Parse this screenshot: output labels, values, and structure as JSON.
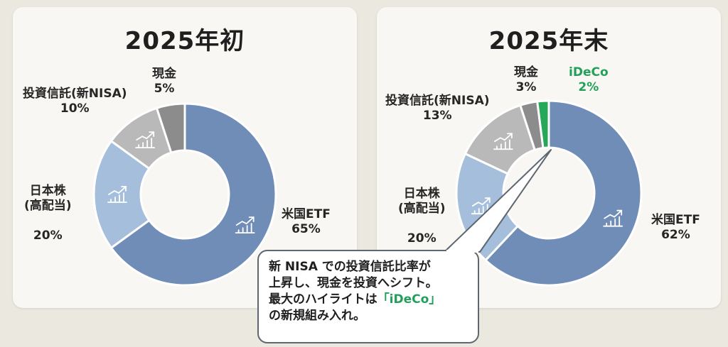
{
  "colors": {
    "us_etf": "#6f8db6",
    "jp_stock": "#a4bedb",
    "trust": "#b9b9b9",
    "cash": "#8c8c8c",
    "ideco": "#26a85a",
    "icon": "#ffffff"
  },
  "icons": {
    "slice_icon": "growth-chart-icon"
  },
  "chart_data": [
    {
      "type": "pie",
      "title": "2025年初",
      "slices": [
        {
          "label": "米国ETF",
          "value": 65,
          "pct_text": "65%",
          "color": "#6f8db6"
        },
        {
          "label": "日本株\n(高配当)",
          "value": 20,
          "pct_text": "20%",
          "color": "#a4bedb"
        },
        {
          "label": "投資信託(新NISA)",
          "value": 10,
          "pct_text": "10%",
          "color": "#b9b9b9"
        },
        {
          "label": "現金",
          "value": 5,
          "pct_text": "5%",
          "color": "#8c8c8c"
        }
      ]
    },
    {
      "type": "pie",
      "title": "2025年末",
      "slices": [
        {
          "label": "米国ETF",
          "value": 62,
          "pct_text": "62%",
          "color": "#6f8db6"
        },
        {
          "label": "日本株\n(高配当)",
          "value": 20,
          "pct_text": "20%",
          "color": "#a4bedb"
        },
        {
          "label": "投資信託(新NISA)",
          "value": 13,
          "pct_text": "13%",
          "color": "#b9b9b9"
        },
        {
          "label": "現金",
          "value": 3,
          "pct_text": "3%",
          "color": "#8c8c8c"
        },
        {
          "label": "iDeCo",
          "value": 2,
          "pct_text": "2%",
          "color": "#26a85a"
        }
      ]
    }
  ],
  "callout": {
    "line1": "新 NISA での投資信託比率が",
    "line2": "上昇し、現金を投資へシフト。",
    "line3_pre": "最大のハイライトは",
    "line3_highlight": "「iDeCo」",
    "line4": "の新規組み入れ。"
  }
}
